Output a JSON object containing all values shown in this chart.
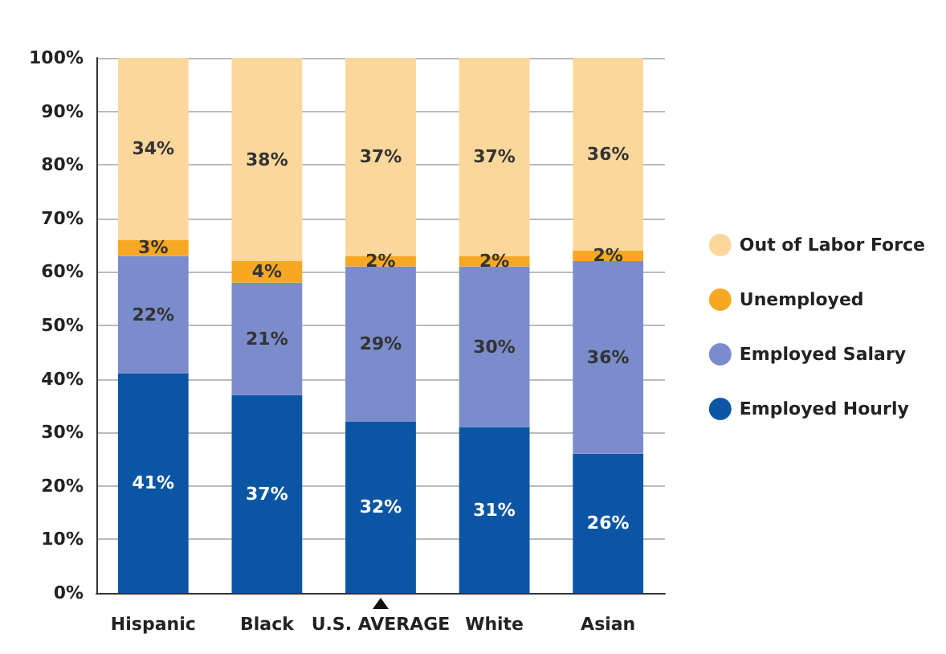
{
  "chart_data": {
    "type": "bar",
    "stacked": true,
    "categories": [
      "Hispanic",
      "Black",
      "U.S. AVERAGE",
      "White",
      "Asian"
    ],
    "series": [
      {
        "name": "Employed Hourly",
        "color": "#0b56a4",
        "values": [
          41,
          37,
          32,
          31,
          26
        ],
        "value_labels": [
          "41%",
          "37%",
          "32%",
          "31%",
          "26%"
        ]
      },
      {
        "name": "Employed Salary",
        "color": "#7b8ccc",
        "values": [
          22,
          21,
          29,
          30,
          36
        ],
        "value_labels": [
          "22%",
          "21%",
          "29%",
          "30%",
          "36%"
        ]
      },
      {
        "name": "Unemployed",
        "color": "#f7a823",
        "values": [
          3,
          4,
          2,
          2,
          2
        ],
        "value_labels": [
          "3%",
          "4%",
          "2%",
          "2%",
          "2%"
        ]
      },
      {
        "name": "Out of Labor Force",
        "color": "#fcd79c",
        "values": [
          34,
          38,
          37,
          37,
          36
        ],
        "value_labels": [
          "34%",
          "38%",
          "37%",
          "37%",
          "36%"
        ]
      }
    ],
    "ylim": [
      0,
      100
    ],
    "yticks": [
      {
        "value": 0,
        "label": "0%"
      },
      {
        "value": 10,
        "label": "10%"
      },
      {
        "value": 20,
        "label": "20%"
      },
      {
        "value": 30,
        "label": "30%"
      },
      {
        "value": 40,
        "label": "40%"
      },
      {
        "value": 50,
        "label": "50%"
      },
      {
        "value": 60,
        "label": "60%"
      },
      {
        "value": 70,
        "label": "70%"
      },
      {
        "value": 80,
        "label": "80%"
      },
      {
        "value": 90,
        "label": "90%"
      },
      {
        "value": 100,
        "label": "100%"
      }
    ],
    "grid": "y",
    "legend": "right",
    "marker": "circle"
  }
}
